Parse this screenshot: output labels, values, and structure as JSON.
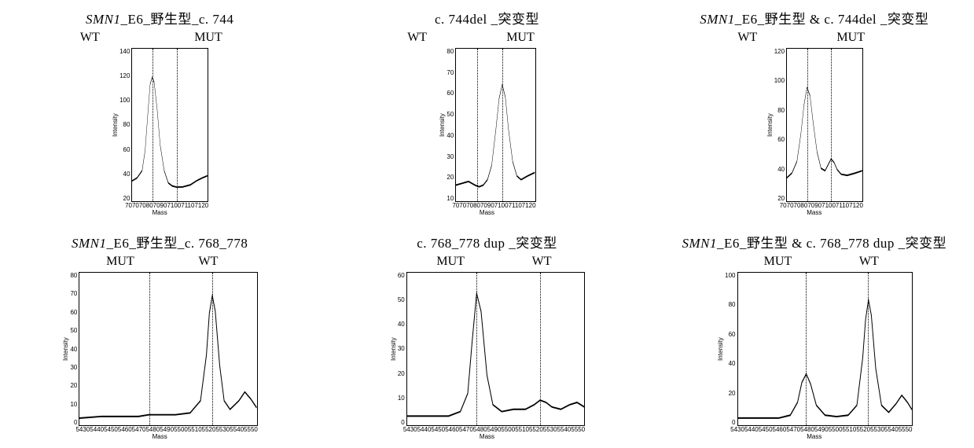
{
  "panels": [
    {
      "title_html": "<i>SMN1</i>_E6_野生型_c. 744",
      "labels": [
        {
          "text": "WT",
          "pos_pct": 27
        },
        {
          "text": "MUT",
          "pos_pct": 66
        }
      ],
      "ylabel": "Intensity",
      "xlabel": "Mass",
      "xticks": [
        "7070",
        "7080",
        "7090",
        "7100",
        "7110",
        "7120"
      ],
      "yticks": [
        "140",
        "120",
        "100",
        "80",
        "60",
        "40",
        "20"
      ],
      "xlim": [
        7060,
        7135
      ],
      "ylim": [
        0,
        150
      ],
      "vlines_x": [
        7080,
        7104
      ],
      "curve": [
        [
          7060,
          20
        ],
        [
          7065,
          23
        ],
        [
          7070,
          30
        ],
        [
          7073,
          50
        ],
        [
          7076,
          90
        ],
        [
          7078,
          115
        ],
        [
          7080,
          122
        ],
        [
          7082,
          117
        ],
        [
          7085,
          90
        ],
        [
          7088,
          55
        ],
        [
          7092,
          30
        ],
        [
          7096,
          18
        ],
        [
          7100,
          15
        ],
        [
          7104,
          14
        ],
        [
          7110,
          14
        ],
        [
          7118,
          16
        ],
        [
          7124,
          20
        ],
        [
          7130,
          23
        ],
        [
          7135,
          25
        ]
      ],
      "line_width": 1.6,
      "line_color": "#000000",
      "bg": "#ffffff"
    },
    {
      "title_html": "c. 744del _突变型",
      "labels": [
        {
          "text": "WT",
          "pos_pct": 27
        },
        {
          "text": "MUT",
          "pos_pct": 61
        }
      ],
      "ylabel": "Intensity",
      "xlabel": "Mass",
      "xticks": [
        "7070",
        "7080",
        "7090",
        "7100",
        "7110",
        "7120"
      ],
      "yticks": [
        "80",
        "70",
        "60",
        "50",
        "40",
        "30",
        "20",
        "10"
      ],
      "xlim": [
        7060,
        7135
      ],
      "ylim": [
        0,
        85
      ],
      "vlines_x": [
        7080,
        7104
      ],
      "curve": [
        [
          7060,
          9
        ],
        [
          7066,
          10
        ],
        [
          7072,
          11
        ],
        [
          7078,
          9
        ],
        [
          7082,
          8
        ],
        [
          7086,
          9
        ],
        [
          7090,
          12
        ],
        [
          7094,
          20
        ],
        [
          7098,
          40
        ],
        [
          7101,
          57
        ],
        [
          7104,
          65
        ],
        [
          7107,
          58
        ],
        [
          7110,
          40
        ],
        [
          7114,
          22
        ],
        [
          7118,
          14
        ],
        [
          7122,
          12
        ],
        [
          7128,
          14
        ],
        [
          7135,
          16
        ]
      ],
      "line_width": 1.6,
      "line_color": "#000000",
      "bg": "#ffffff"
    },
    {
      "title_html": "<i>SMN1</i>_E6_野生型 & c. 744del _突变型",
      "labels": [
        {
          "text": "WT",
          "pos_pct": 28
        },
        {
          "text": "MUT",
          "pos_pct": 62
        }
      ],
      "ylabel": "Intensity",
      "xlabel": "Mass",
      "xticks": [
        "7070",
        "7080",
        "7090",
        "7100",
        "7110",
        "7120"
      ],
      "yticks": [
        "120",
        "100",
        "80",
        "60",
        "40",
        "20"
      ],
      "xlim": [
        7060,
        7135
      ],
      "ylim": [
        0,
        130
      ],
      "vlines_x": [
        7080,
        7104
      ],
      "curve": [
        [
          7060,
          20
        ],
        [
          7065,
          24
        ],
        [
          7070,
          34
        ],
        [
          7074,
          58
        ],
        [
          7077,
          82
        ],
        [
          7080,
          97
        ],
        [
          7083,
          90
        ],
        [
          7086,
          68
        ],
        [
          7090,
          42
        ],
        [
          7094,
          28
        ],
        [
          7098,
          26
        ],
        [
          7101,
          31
        ],
        [
          7104,
          36
        ],
        [
          7107,
          33
        ],
        [
          7110,
          27
        ],
        [
          7114,
          23
        ],
        [
          7120,
          22
        ],
        [
          7128,
          24
        ],
        [
          7135,
          26
        ]
      ],
      "line_width": 1.6,
      "line_color": "#000000",
      "bg": "#ffffff"
    },
    {
      "title_html": "<i>SMN1</i>_E6_野生型_c. 768_778",
      "labels": [
        {
          "text": "MUT",
          "pos_pct": 37
        },
        {
          "text": "WT",
          "pos_pct": 66
        }
      ],
      "ylabel": "Intensity",
      "xlabel": "Mass",
      "xticks": [
        "5430",
        "5440",
        "5450",
        "5460",
        "5470",
        "5480",
        "5490",
        "5500",
        "5510",
        "5520",
        "5530",
        "5540",
        "5550"
      ],
      "yticks": [
        "80",
        "70",
        "60",
        "50",
        "40",
        "30",
        "20",
        "10",
        "0"
      ],
      "xlim": [
        5430,
        5550
      ],
      "ylim": [
        -2,
        85
      ],
      "vlines_x": [
        5477,
        5520
      ],
      "curve": [
        [
          5430,
          2
        ],
        [
          5445,
          3
        ],
        [
          5460,
          3
        ],
        [
          5470,
          3
        ],
        [
          5477,
          4
        ],
        [
          5485,
          4
        ],
        [
          5495,
          4
        ],
        [
          5505,
          5
        ],
        [
          5512,
          12
        ],
        [
          5516,
          38
        ],
        [
          5518,
          62
        ],
        [
          5520,
          72
        ],
        [
          5522,
          63
        ],
        [
          5525,
          32
        ],
        [
          5528,
          12
        ],
        [
          5532,
          7
        ],
        [
          5538,
          12
        ],
        [
          5542,
          17
        ],
        [
          5546,
          13
        ],
        [
          5550,
          8
        ]
      ],
      "line_width": 1.6,
      "line_color": "#000000",
      "bg": "#ffffff"
    },
    {
      "title_html": "c. 768_778 dup _突变型",
      "labels": [
        {
          "text": "MUT",
          "pos_pct": 38
        },
        {
          "text": "WT",
          "pos_pct": 68
        }
      ],
      "ylabel": "Intensity",
      "xlabel": "Mass",
      "xticks": [
        "5430",
        "5440",
        "5450",
        "5460",
        "5470",
        "5480",
        "5490",
        "5500",
        "5510",
        "5520",
        "5530",
        "5540",
        "5550"
      ],
      "yticks": [
        "60",
        "50",
        "40",
        "30",
        "20",
        "10",
        "0"
      ],
      "xlim": [
        5430,
        5550
      ],
      "ylim": [
        -2,
        65
      ],
      "vlines_x": [
        5477,
        5520
      ],
      "curve": [
        [
          5430,
          2
        ],
        [
          5445,
          2
        ],
        [
          5458,
          2
        ],
        [
          5466,
          4
        ],
        [
          5471,
          12
        ],
        [
          5474,
          35
        ],
        [
          5477,
          56
        ],
        [
          5480,
          48
        ],
        [
          5484,
          20
        ],
        [
          5488,
          7
        ],
        [
          5494,
          4
        ],
        [
          5502,
          5
        ],
        [
          5510,
          5
        ],
        [
          5516,
          7
        ],
        [
          5520,
          9
        ],
        [
          5524,
          8
        ],
        [
          5528,
          6
        ],
        [
          5534,
          5
        ],
        [
          5540,
          7
        ],
        [
          5545,
          8
        ],
        [
          5550,
          6
        ]
      ],
      "line_width": 1.6,
      "line_color": "#000000",
      "bg": "#ffffff"
    },
    {
      "title_html": "<i>SMN1</i>_E6_野生型 & c. 768_778 dup _突变型",
      "labels": [
        {
          "text": "MUT",
          "pos_pct": 38
        },
        {
          "text": "WT",
          "pos_pct": 68
        }
      ],
      "ylabel": "Intensity",
      "xlabel": "Mass",
      "xticks": [
        "5430",
        "5440",
        "5450",
        "5460",
        "5470",
        "5480",
        "5490",
        "5500",
        "5510",
        "5520",
        "5530",
        "5540",
        "5550"
      ],
      "yticks": [
        "100",
        "80",
        "60",
        "40",
        "20",
        "0"
      ],
      "xlim": [
        5430,
        5550
      ],
      "ylim": [
        -2,
        105
      ],
      "vlines_x": [
        5477,
        5520
      ],
      "curve": [
        [
          5430,
          3
        ],
        [
          5445,
          3
        ],
        [
          5458,
          3
        ],
        [
          5466,
          5
        ],
        [
          5471,
          14
        ],
        [
          5474,
          28
        ],
        [
          5477,
          34
        ],
        [
          5480,
          27
        ],
        [
          5484,
          12
        ],
        [
          5490,
          5
        ],
        [
          5498,
          4
        ],
        [
          5506,
          5
        ],
        [
          5512,
          12
        ],
        [
          5516,
          45
        ],
        [
          5518,
          72
        ],
        [
          5520,
          86
        ],
        [
          5522,
          75
        ],
        [
          5525,
          38
        ],
        [
          5529,
          12
        ],
        [
          5534,
          7
        ],
        [
          5539,
          13
        ],
        [
          5543,
          19
        ],
        [
          5547,
          14
        ],
        [
          5550,
          9
        ]
      ],
      "line_width": 1.6,
      "line_color": "#000000",
      "bg": "#ffffff"
    }
  ]
}
